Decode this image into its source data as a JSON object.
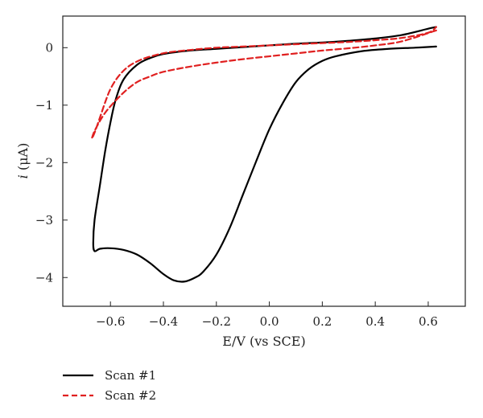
{
  "chart_data": {
    "type": "line",
    "title": "",
    "xlabel": "E/V (vs SCE)",
    "ylabel_italic": "i",
    "ylabel_rest": " (μA)",
    "xlim": [
      -0.78,
      0.74
    ],
    "ylim": [
      -4.5,
      0.55
    ],
    "xticks": [
      -0.6,
      -0.4,
      -0.2,
      0.0,
      0.2,
      0.4,
      0.6
    ],
    "xtick_labels": [
      "−0.6",
      "−0.4",
      "−0.2",
      "0.0",
      "0.2",
      "0.4",
      "0.6"
    ],
    "yticks": [
      0,
      -1,
      -2,
      -3,
      -4
    ],
    "ytick_labels": [
      "0",
      "−1",
      "−2",
      "−3",
      "−4"
    ],
    "grid": false,
    "legend_position": "below-left",
    "series": [
      {
        "name": "Scan #1",
        "color": "#000000",
        "style": "solid",
        "x": [
          0.63,
          0.55,
          0.45,
          0.35,
          0.25,
          0.2,
          0.15,
          0.1,
          0.05,
          0.0,
          -0.05,
          -0.1,
          -0.15,
          -0.2,
          -0.25,
          -0.28,
          -0.32,
          -0.36,
          -0.4,
          -0.45,
          -0.5,
          -0.55,
          -0.6,
          -0.64,
          -0.66,
          -0.665,
          -0.66,
          -0.64,
          -0.62,
          -0.6,
          -0.58,
          -0.55,
          -0.5,
          -0.45,
          -0.4,
          -0.3,
          -0.2,
          -0.1,
          0.0,
          0.1,
          0.2,
          0.3,
          0.4,
          0.5,
          0.6,
          0.63
        ],
        "y": [
          0.02,
          0.0,
          -0.02,
          -0.06,
          -0.15,
          -0.23,
          -0.37,
          -0.6,
          -0.97,
          -1.42,
          -1.98,
          -2.56,
          -3.14,
          -3.6,
          -3.9,
          -4.0,
          -4.07,
          -4.05,
          -3.94,
          -3.75,
          -3.6,
          -3.52,
          -3.49,
          -3.5,
          -3.54,
          -3.4,
          -3.0,
          -2.4,
          -1.8,
          -1.3,
          -0.9,
          -0.55,
          -0.3,
          -0.18,
          -0.11,
          -0.05,
          -0.02,
          0.01,
          0.04,
          0.07,
          0.09,
          0.12,
          0.16,
          0.22,
          0.33,
          0.36
        ]
      },
      {
        "name": "Scan #2",
        "color": "#e02020",
        "style": "dashed",
        "x": [
          0.63,
          0.5,
          0.4,
          0.3,
          0.2,
          0.1,
          0.0,
          -0.1,
          -0.2,
          -0.3,
          -0.4,
          -0.45,
          -0.5,
          -0.55,
          -0.6,
          -0.63,
          -0.66,
          -0.67,
          -0.66,
          -0.64,
          -0.62,
          -0.6,
          -0.57,
          -0.53,
          -0.48,
          -0.43,
          -0.38,
          -0.3,
          -0.2,
          -0.1,
          0.0,
          0.1,
          0.2,
          0.3,
          0.4,
          0.5,
          0.6,
          0.63
        ],
        "y": [
          0.3,
          0.11,
          0.04,
          -0.01,
          -0.05,
          -0.1,
          -0.15,
          -0.2,
          -0.26,
          -0.33,
          -0.42,
          -0.5,
          -0.6,
          -0.78,
          -1.02,
          -1.2,
          -1.45,
          -1.58,
          -1.48,
          -1.22,
          -0.95,
          -0.72,
          -0.5,
          -0.32,
          -0.2,
          -0.13,
          -0.08,
          -0.04,
          0.0,
          0.02,
          0.04,
          0.06,
          0.08,
          0.1,
          0.13,
          0.17,
          0.26,
          0.36
        ]
      }
    ]
  }
}
